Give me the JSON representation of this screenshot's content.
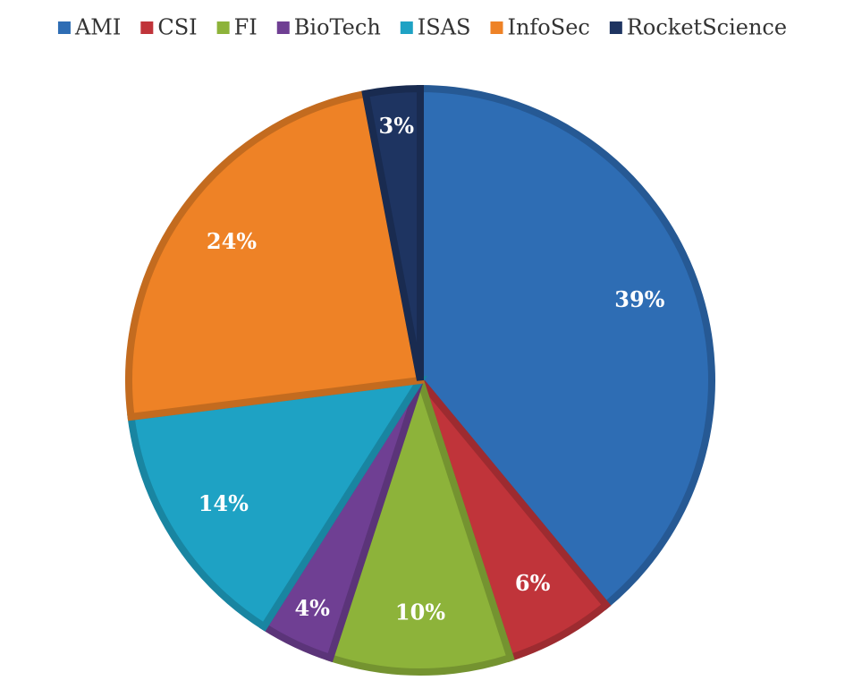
{
  "chart_data": {
    "type": "pie",
    "categories": [
      "AMI",
      "CSI",
      "FI",
      "BioTech",
      "ISAS",
      "InfoSec",
      "RocketScience"
    ],
    "values": [
      39,
      6,
      10,
      4,
      14,
      24,
      3
    ],
    "value_labels": [
      "39%",
      "6%",
      "10%",
      "4%",
      "14%",
      "24%",
      "3%"
    ],
    "colors": [
      "#2e6db4",
      "#c0343a",
      "#8db33a",
      "#6f3f93",
      "#1ea2c4",
      "#ee8226",
      "#1e3461"
    ],
    "legend": "top"
  }
}
